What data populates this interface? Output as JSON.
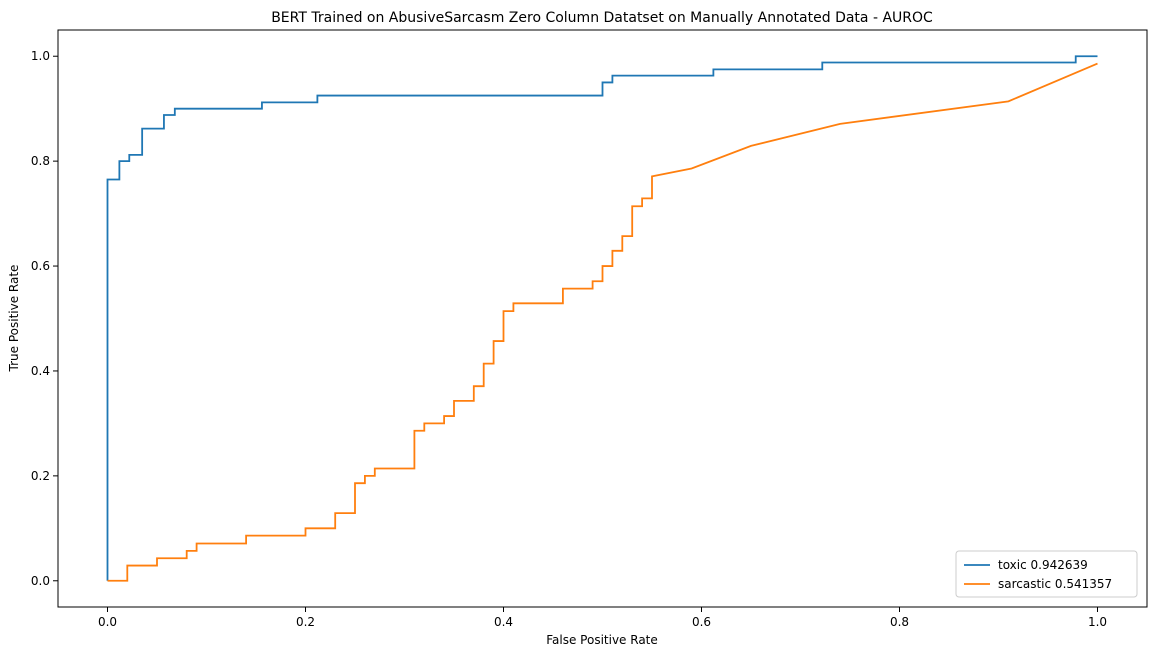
{
  "chart_data": {
    "type": "line",
    "title": "BERT Trained on AbusiveSarcasm Zero Column Datatset on Manually Annotated Data - AUROC",
    "xlabel": "False Positive Rate",
    "ylabel": "True Positive Rate",
    "xlim": [
      -0.05,
      1.05
    ],
    "ylim": [
      -0.05,
      1.05
    ],
    "xticks": [
      0.0,
      0.2,
      0.4,
      0.6,
      0.8,
      1.0
    ],
    "xtick_labels": [
      "0.0",
      "0.2",
      "0.4",
      "0.6",
      "0.8",
      "1.0"
    ],
    "yticks": [
      0.0,
      0.2,
      0.4,
      0.6,
      0.8,
      1.0
    ],
    "ytick_labels": [
      "0.0",
      "0.2",
      "0.4",
      "0.6",
      "0.8",
      "1.0"
    ],
    "grid": false,
    "legend_position": "bottom-right",
    "series": [
      {
        "name": "toxic 0.942639",
        "color": "#1f77b4",
        "x": [
          0.0,
          0.0,
          0.0,
          0.012,
          0.012,
          0.022,
          0.022,
          0.035,
          0.035,
          0.057,
          0.057,
          0.068,
          0.068,
          0.156,
          0.156,
          0.212,
          0.212,
          0.5,
          0.5,
          0.51,
          0.51,
          0.612,
          0.612,
          0.722,
          0.722,
          0.978,
          0.978,
          1.0
        ],
        "y": [
          0.0,
          0.688,
          0.765,
          0.765,
          0.8,
          0.8,
          0.812,
          0.812,
          0.862,
          0.862,
          0.888,
          0.888,
          0.9,
          0.9,
          0.912,
          0.912,
          0.925,
          0.925,
          0.95,
          0.95,
          0.963,
          0.963,
          0.975,
          0.975,
          0.988,
          0.988,
          1.0,
          1.0
        ]
      },
      {
        "name": "sarcastic 0.541357",
        "color": "#ff7f0e",
        "x": [
          0.0,
          0.02,
          0.02,
          0.05,
          0.05,
          0.08,
          0.08,
          0.09,
          0.09,
          0.14,
          0.14,
          0.2,
          0.2,
          0.23,
          0.23,
          0.25,
          0.25,
          0.26,
          0.26,
          0.27,
          0.27,
          0.31,
          0.31,
          0.32,
          0.32,
          0.34,
          0.34,
          0.35,
          0.35,
          0.37,
          0.37,
          0.38,
          0.38,
          0.39,
          0.39,
          0.4,
          0.4,
          0.41,
          0.41,
          0.46,
          0.46,
          0.49,
          0.49,
          0.5,
          0.5,
          0.51,
          0.51,
          0.52,
          0.52,
          0.53,
          0.53,
          0.54,
          0.54,
          0.55,
          0.55,
          0.59,
          0.65,
          0.74,
          0.91,
          1.0
        ],
        "y": [
          0.0,
          0.0,
          0.029,
          0.029,
          0.043,
          0.043,
          0.057,
          0.057,
          0.071,
          0.071,
          0.086,
          0.086,
          0.1,
          0.1,
          0.129,
          0.129,
          0.186,
          0.186,
          0.2,
          0.2,
          0.214,
          0.214,
          0.286,
          0.286,
          0.3,
          0.3,
          0.314,
          0.314,
          0.343,
          0.343,
          0.371,
          0.371,
          0.414,
          0.414,
          0.457,
          0.457,
          0.514,
          0.514,
          0.529,
          0.529,
          0.557,
          0.557,
          0.571,
          0.571,
          0.6,
          0.6,
          0.629,
          0.629,
          0.657,
          0.657,
          0.714,
          0.714,
          0.729,
          0.729,
          0.771,
          0.786,
          0.829,
          0.871,
          0.914,
          0.986
        ]
      }
    ]
  }
}
